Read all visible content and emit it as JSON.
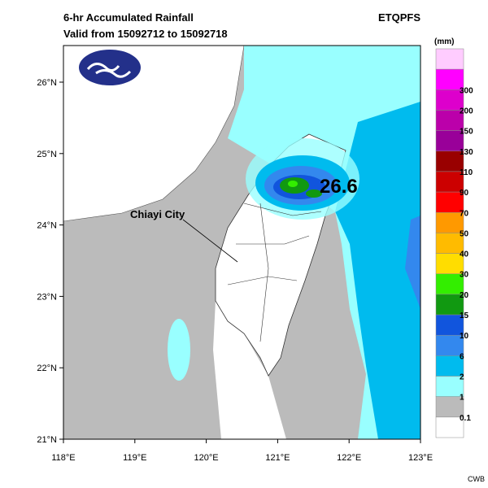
{
  "header": {
    "title": "6-hr Accumulated Rainfall",
    "subtitle": "Valid from 15092712 to 15092718",
    "product": "ETQPFS"
  },
  "map": {
    "lon_ticks": [
      {
        "value": 118,
        "label": "118°E"
      },
      {
        "value": 119,
        "label": "119°E"
      },
      {
        "value": 120,
        "label": "120°E"
      },
      {
        "value": 121,
        "label": "121°E"
      },
      {
        "value": 122,
        "label": "122°E"
      },
      {
        "value": 123,
        "label": "123°E"
      }
    ],
    "lat_ticks": [
      {
        "value": 21,
        "label": "21°N"
      },
      {
        "value": 22,
        "label": "22°N"
      },
      {
        "value": 23,
        "label": "23°N"
      },
      {
        "value": 24,
        "label": "24°N"
      },
      {
        "value": 25,
        "label": "25°N"
      },
      {
        "value": 26,
        "label": "26°N"
      }
    ],
    "annotations": {
      "city": "Chiayi City",
      "max_value": "26.6"
    }
  },
  "legend": {
    "unit": "(mm)",
    "labels": [
      "300",
      "200",
      "150",
      "130",
      "110",
      "90",
      "70",
      "50",
      "40",
      "30",
      "20",
      "15",
      "10",
      "6",
      "2",
      "1",
      "0.1"
    ],
    "colors": [
      "#ffccff",
      "#ff00ff",
      "#dd00cc",
      "#bb00aa",
      "#990099",
      "#990000",
      "#cc0000",
      "#ff0000",
      "#ff9900",
      "#ffbb00",
      "#ffdd00",
      "#33ee00",
      "#119911",
      "#1155dd",
      "#3388ee",
      "#00bbee",
      "#99ffff",
      "#bbbbbb",
      "#ffffff"
    ]
  },
  "footer": {
    "credit": "CWB"
  }
}
